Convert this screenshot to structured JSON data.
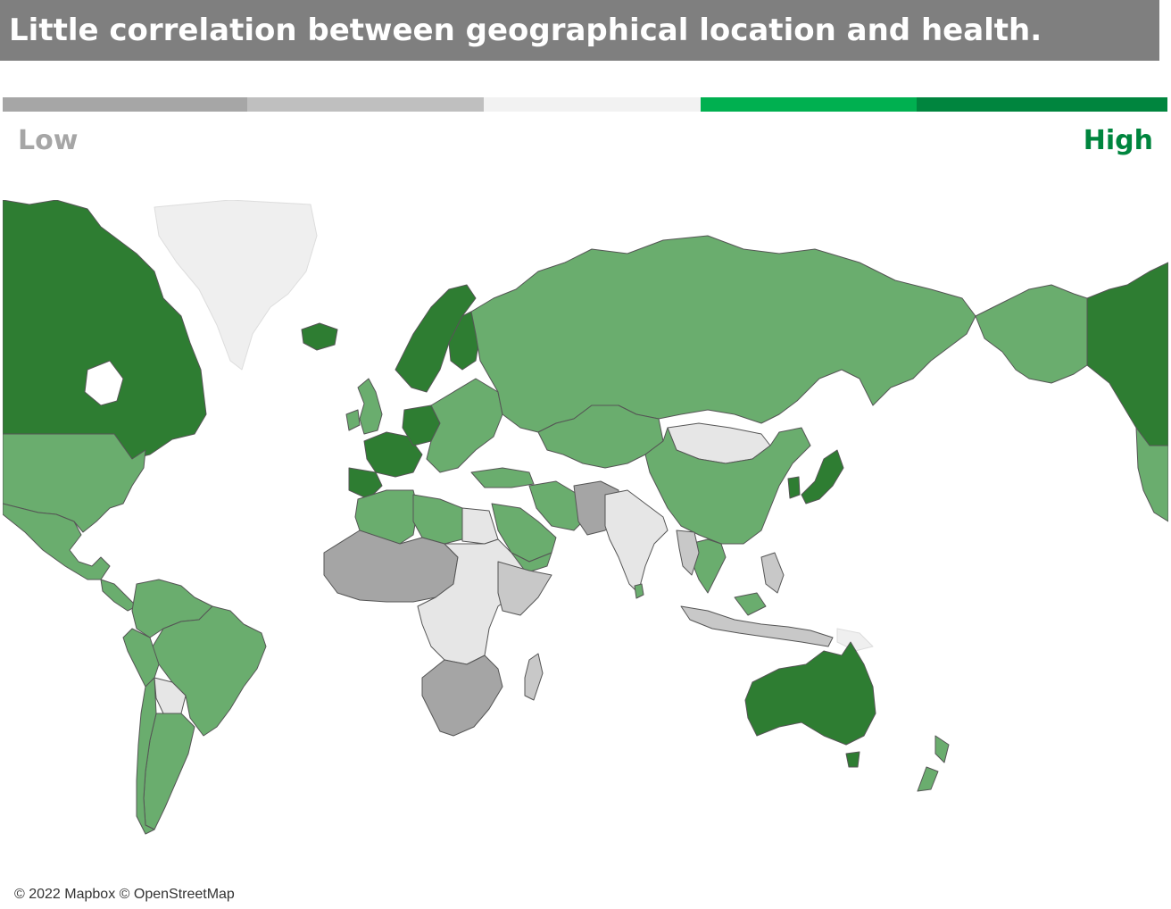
{
  "title": "Little correlation between geographical location and health.",
  "legend": {
    "low_label": "Low",
    "high_label": "High",
    "low_color": "#a6a6a6",
    "high_color": "#00853e",
    "segments": [
      "#a6a6a6",
      "#bfbfbf",
      "#f2f2f2",
      "#00b050",
      "#00853e"
    ]
  },
  "map": {
    "fills": {
      "very_high": "#2e7d32",
      "high": "#6aad6e",
      "medium": "#e6e6e6",
      "low": "#c8c8c8",
      "very_low": "#a5a5a5",
      "no_data": "#efefef"
    }
  },
  "attribution": "© 2022 Mapbox © OpenStreetMap"
}
